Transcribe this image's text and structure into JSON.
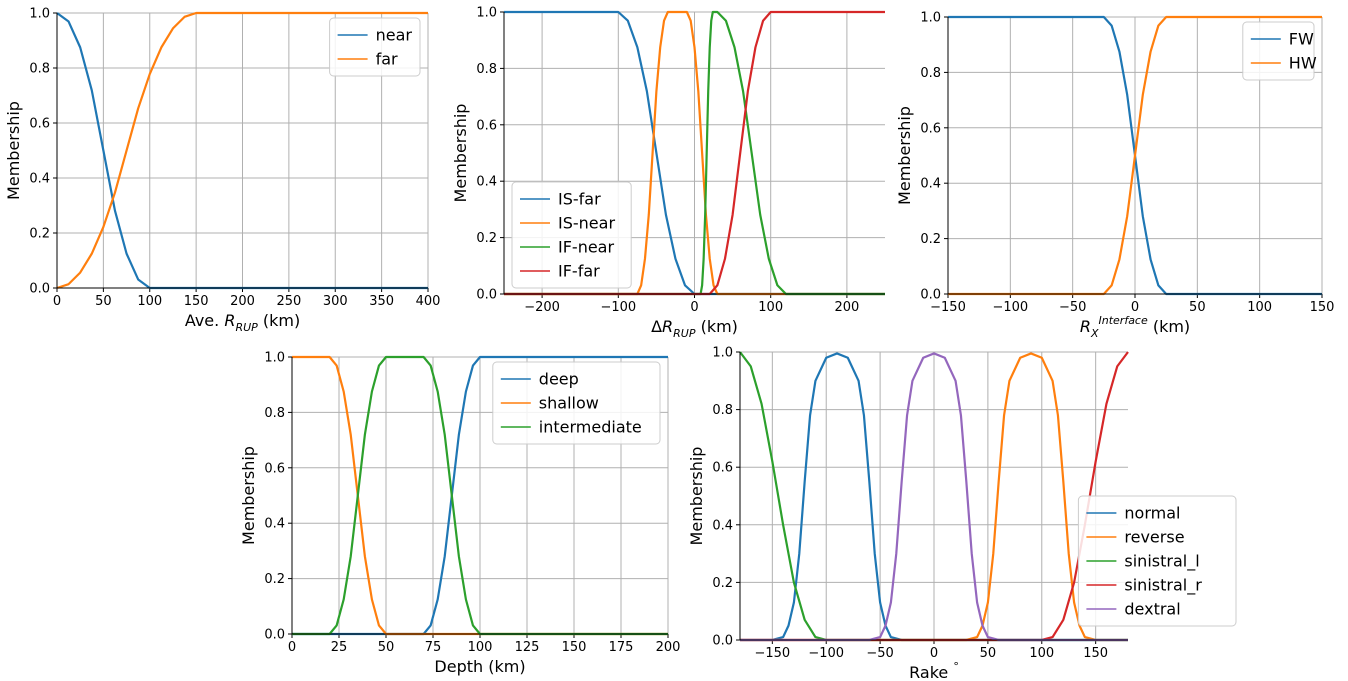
{
  "chart_data": [
    {
      "type": "line",
      "ylabel": "Membership",
      "xlabel": {
        "prefix": "Ave. ",
        "symbol": "R",
        "subscript": "RUP",
        "suffix": " (km)"
      },
      "xlim": [
        0,
        400
      ],
      "ylim": [
        0,
        1
      ],
      "xticks": [
        0,
        50,
        100,
        150,
        200,
        250,
        300,
        350,
        400
      ],
      "yticks": [
        {
          "value": 0,
          "label": "0.0"
        },
        {
          "value": 0.2,
          "label": "0.2"
        },
        {
          "value": 0.4,
          "label": "0.4"
        },
        {
          "value": 0.6,
          "label": "0.6"
        },
        {
          "value": 0.8,
          "label": "0.8"
        },
        {
          "value": 1,
          "label": "1.0"
        }
      ],
      "grid": true,
      "legend_loc": "upper right",
      "series": [
        {
          "name": "near",
          "color": "#1f77b4",
          "x": [
            0,
            12.5,
            25,
            37.5,
            50,
            62.5,
            75,
            87.5,
            100,
            112.5,
            125,
            137.5,
            150,
            200,
            250,
            300,
            350,
            400
          ],
          "values": [
            1,
            0.969,
            0.875,
            0.719,
            0.5,
            0.281,
            0.125,
            0.031,
            0,
            0,
            0,
            0,
            0,
            0,
            0,
            0,
            0,
            0
          ]
        },
        {
          "name": "far",
          "color": "#ff7f0e",
          "x": [
            0,
            12.5,
            25,
            37.5,
            50,
            62.5,
            75,
            87.5,
            100,
            112.5,
            125,
            137.5,
            150,
            200,
            250,
            300,
            350,
            400
          ],
          "values": [
            0,
            0.014,
            0.056,
            0.125,
            0.222,
            0.347,
            0.5,
            0.653,
            0.778,
            0.875,
            0.944,
            0.986,
            1,
            1,
            1,
            1,
            1,
            1
          ]
        }
      ]
    },
    {
      "type": "line",
      "ylabel": "Membership",
      "xlabel": {
        "prefix": "Δ",
        "symbol": "R",
        "subscript": "RUP",
        "suffix": " (km)"
      },
      "xlim": [
        -250,
        250
      ],
      "ylim": [
        0,
        1
      ],
      "xticks": [
        {
          "value": -200,
          "label": "−200"
        },
        {
          "value": -100,
          "label": "−100"
        },
        0,
        100,
        200
      ],
      "yticks": [
        {
          "value": 0,
          "label": "0.0"
        },
        {
          "value": 0.2,
          "label": "0.2"
        },
        {
          "value": 0.4,
          "label": "0.4"
        },
        {
          "value": 0.6,
          "label": "0.6"
        },
        {
          "value": 0.8,
          "label": "0.8"
        },
        {
          "value": 1,
          "label": "1.0"
        }
      ],
      "grid": true,
      "legend_loc": "lower left",
      "series": [
        {
          "name": "IS-far",
          "color": "#1f77b4",
          "x": [
            -250,
            -100,
            -87.5,
            -75,
            -62.5,
            -50,
            -37.5,
            -25,
            -12.5,
            0,
            250
          ],
          "values": [
            1,
            1,
            0.969,
            0.875,
            0.719,
            0.5,
            0.281,
            0.125,
            0.031,
            0,
            0
          ]
        },
        {
          "name": "IS-near",
          "color": "#ff7f0e",
          "x": [
            -250,
            -75,
            -70,
            -65,
            -60,
            -55,
            -50,
            -45,
            -40,
            -35,
            -10,
            -5,
            0,
            5,
            10,
            15,
            20,
            25,
            30,
            250
          ],
          "values": [
            0,
            0,
            0.031,
            0.125,
            0.281,
            0.5,
            0.719,
            0.875,
            0.969,
            1,
            1,
            0.969,
            0.875,
            0.719,
            0.5,
            0.281,
            0.125,
            0.031,
            0,
            0
          ]
        },
        {
          "name": "IF-near",
          "color": "#2ca02c",
          "x": [
            -250,
            8,
            10,
            12,
            14,
            16,
            18,
            20,
            22,
            24,
            30,
            41.25,
            52.5,
            63.75,
            75,
            86.25,
            97.5,
            108.75,
            120,
            250
          ],
          "values": [
            0,
            0,
            0.031,
            0.125,
            0.281,
            0.5,
            0.719,
            0.875,
            0.969,
            1,
            1,
            0.969,
            0.875,
            0.719,
            0.5,
            0.281,
            0.125,
            0.031,
            0,
            0
          ]
        },
        {
          "name": "IF-far",
          "color": "#d62728",
          "x": [
            -250,
            20,
            30,
            40,
            50,
            60,
            70,
            80,
            90,
            100,
            250
          ],
          "values": [
            0,
            0,
            0.031,
            0.125,
            0.281,
            0.5,
            0.719,
            0.875,
            0.969,
            1,
            1
          ]
        }
      ]
    },
    {
      "type": "line",
      "ylabel": "Membership",
      "xlabel": {
        "symbol": "R",
        "subscript": "X",
        "superscript": "Interface",
        "suffix": " (km)"
      },
      "xlim": [
        -150,
        150
      ],
      "ylim": [
        0,
        1
      ],
      "xticks": [
        {
          "value": -150,
          "label": "−150"
        },
        {
          "value": -100,
          "label": "−100"
        },
        {
          "value": -50,
          "label": "−50"
        },
        0,
        50,
        100,
        150
      ],
      "yticks": [
        {
          "value": 0,
          "label": "0.0"
        },
        {
          "value": 0.2,
          "label": "0.2"
        },
        {
          "value": 0.4,
          "label": "0.4"
        },
        {
          "value": 0.6,
          "label": "0.6"
        },
        {
          "value": 0.8,
          "label": "0.8"
        },
        {
          "value": 1,
          "label": "1.0"
        }
      ],
      "grid": true,
      "legend_loc": "upper right",
      "series": [
        {
          "name": "FW",
          "color": "#1f77b4",
          "x": [
            -150,
            -25,
            -18.75,
            -12.5,
            -6.25,
            0,
            6.25,
            12.5,
            18.75,
            25,
            150
          ],
          "values": [
            1,
            1,
            0.969,
            0.875,
            0.719,
            0.5,
            0.281,
            0.125,
            0.031,
            0,
            0
          ]
        },
        {
          "name": "HW",
          "color": "#ff7f0e",
          "x": [
            -150,
            -25,
            -18.75,
            -12.5,
            -6.25,
            0,
            6.25,
            12.5,
            18.75,
            25,
            150
          ],
          "values": [
            0,
            0,
            0.031,
            0.125,
            0.281,
            0.5,
            0.719,
            0.875,
            0.969,
            1,
            1
          ]
        }
      ]
    },
    {
      "type": "line",
      "ylabel": "Membership",
      "xlabel": "Depth (km)",
      "xlim": [
        0,
        200
      ],
      "ylim": [
        0,
        1
      ],
      "xticks": [
        0,
        25,
        50,
        75,
        100,
        125,
        150,
        175,
        200
      ],
      "yticks": [
        {
          "value": 0,
          "label": "0.0"
        },
        {
          "value": 0.2,
          "label": "0.2"
        },
        {
          "value": 0.4,
          "label": "0.4"
        },
        {
          "value": 0.6,
          "label": "0.6"
        },
        {
          "value": 0.8,
          "label": "0.8"
        },
        {
          "value": 1,
          "label": "1.0"
        }
      ],
      "grid": true,
      "legend_loc": "upper right",
      "series": [
        {
          "name": "deep",
          "color": "#1f77b4",
          "x": [
            0,
            70,
            73.75,
            77.5,
            81.25,
            85,
            88.75,
            92.5,
            96.25,
            100,
            200
          ],
          "values": [
            0,
            0,
            0.031,
            0.125,
            0.281,
            0.5,
            0.719,
            0.875,
            0.969,
            1,
            1
          ]
        },
        {
          "name": "shallow",
          "color": "#ff7f0e",
          "x": [
            0,
            20,
            23.75,
            27.5,
            31.25,
            35,
            38.75,
            42.5,
            46.25,
            50,
            200
          ],
          "values": [
            1,
            1,
            0.969,
            0.875,
            0.719,
            0.5,
            0.281,
            0.125,
            0.031,
            0,
            0
          ]
        },
        {
          "name": "intermediate",
          "color": "#2ca02c",
          "x": [
            0,
            20,
            23.75,
            27.5,
            31.25,
            35,
            38.75,
            42.5,
            46.25,
            50,
            70,
            73.75,
            77.5,
            81.25,
            85,
            88.75,
            92.5,
            96.25,
            100,
            200
          ],
          "values": [
            0,
            0,
            0.031,
            0.125,
            0.281,
            0.5,
            0.719,
            0.875,
            0.969,
            1,
            1,
            0.969,
            0.875,
            0.719,
            0.5,
            0.281,
            0.125,
            0.031,
            0,
            0
          ]
        }
      ]
    },
    {
      "type": "line",
      "ylabel": "Membership",
      "xlabel": {
        "prefix": "Rake ",
        "superscript": "°"
      },
      "xlim": [
        -180,
        180
      ],
      "ylim": [
        0,
        1
      ],
      "xticks": [
        {
          "value": -150,
          "label": "−150"
        },
        {
          "value": -100,
          "label": "−100"
        },
        {
          "value": -50,
          "label": "−50"
        },
        0,
        50,
        100,
        150
      ],
      "yticks": [
        {
          "value": 0,
          "label": "0.0"
        },
        {
          "value": 0.2,
          "label": "0.2"
        },
        {
          "value": 0.4,
          "label": "0.4"
        },
        {
          "value": 0.6,
          "label": "0.6"
        },
        {
          "value": 0.8,
          "label": "0.8"
        },
        {
          "value": 1,
          "label": "1.0"
        }
      ],
      "grid": true,
      "legend_loc": "lower right",
      "series": [
        {
          "name": "normal",
          "color": "#1f77b4",
          "x": [
            -180,
            -150,
            -140,
            -135,
            -130,
            -125,
            -120,
            -115,
            -110,
            -100,
            -90,
            -80,
            -70,
            -65,
            -60,
            -55,
            -50,
            -45,
            -40,
            -30,
            180
          ],
          "values": [
            0,
            0,
            0.01,
            0.05,
            0.13,
            0.3,
            0.55,
            0.78,
            0.9,
            0.98,
            0.995,
            0.98,
            0.9,
            0.78,
            0.55,
            0.3,
            0.13,
            0.05,
            0.01,
            0,
            0
          ]
        },
        {
          "name": "reverse",
          "color": "#ff7f0e",
          "x": [
            -180,
            30,
            40,
            45,
            50,
            55,
            60,
            65,
            70,
            80,
            90,
            100,
            110,
            115,
            120,
            125,
            130,
            135,
            140,
            150,
            180
          ],
          "values": [
            0,
            0,
            0.01,
            0.05,
            0.13,
            0.3,
            0.55,
            0.78,
            0.9,
            0.98,
            0.995,
            0.98,
            0.9,
            0.78,
            0.55,
            0.3,
            0.13,
            0.05,
            0.01,
            0,
            0
          ]
        },
        {
          "name": "sinistral_l",
          "color": "#2ca02c",
          "x": [
            -180,
            -170,
            -160,
            -150,
            -140,
            -130,
            -120,
            -110,
            -100,
            180
          ],
          "values": [
            1,
            0.95,
            0.82,
            0.62,
            0.4,
            0.2,
            0.07,
            0.01,
            0,
            0
          ]
        },
        {
          "name": "sinistral_r",
          "color": "#d62728",
          "x": [
            -180,
            100,
            110,
            120,
            130,
            140,
            150,
            160,
            170,
            180
          ],
          "values": [
            0,
            0,
            0.01,
            0.07,
            0.2,
            0.4,
            0.62,
            0.82,
            0.95,
            1
          ]
        },
        {
          "name": "dextral",
          "color": "#9467bd",
          "x": [
            -180,
            -60,
            -50,
            -45,
            -40,
            -35,
            -30,
            -25,
            -20,
            -10,
            0,
            10,
            20,
            25,
            30,
            35,
            40,
            45,
            50,
            60,
            180
          ],
          "values": [
            0,
            0,
            0.01,
            0.05,
            0.13,
            0.3,
            0.55,
            0.78,
            0.9,
            0.98,
            0.995,
            0.98,
            0.9,
            0.78,
            0.55,
            0.3,
            0.13,
            0.05,
            0.01,
            0,
            0
          ]
        }
      ]
    }
  ]
}
